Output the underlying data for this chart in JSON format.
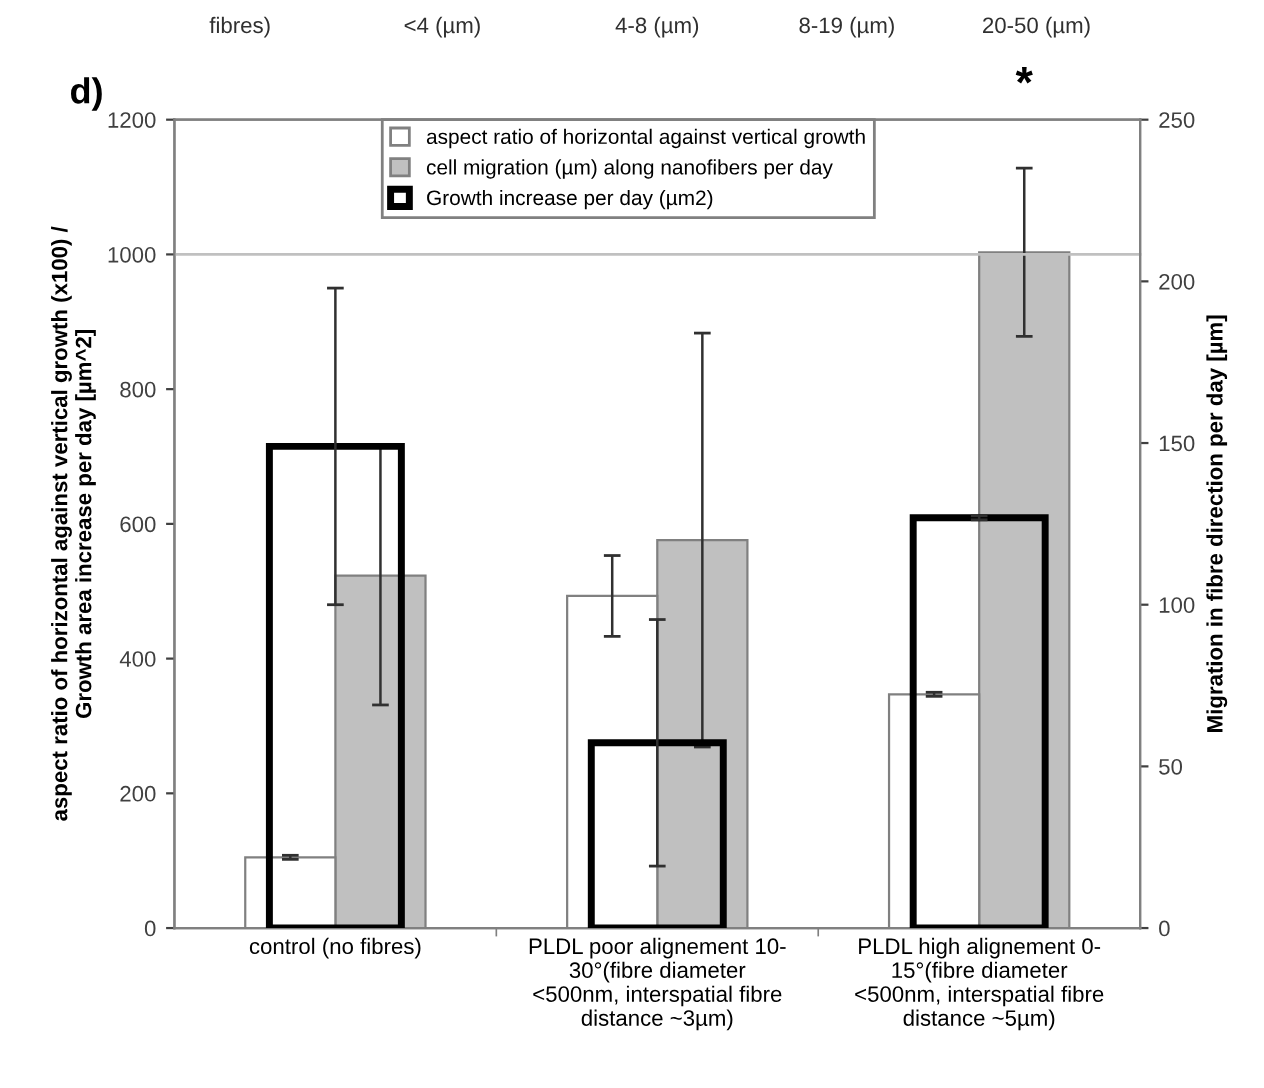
{
  "chart_data": {
    "type": "bar",
    "categories": [
      "control (no fibres)",
      "PLDL poor alignement 10-\n30°(fibre diameter\n<500nm, interspatial fibre\ndistance ~3µm)",
      "PLDL high alignement 0-\n15°(fibre diameter\n<500nm, interspatial fibre\ndistance ~5µm)"
    ],
    "ylabel": "aspect ratio of horizontal against vertical growth (x100) /\nGrowth area increase per day [µm^2]",
    "y2label": "Migration in fibre direction per day [µm]",
    "series": [
      {
        "name": "aspect ratio of horizontal against vertical growth",
        "color": "#ffffff",
        "values": [
          105,
          493,
          347
        ],
        "errors": [
          3,
          60,
          3
        ]
      },
      {
        "name": "cell migration (µm) along nanofibers per day",
        "color": "#c0c0c0",
        "values": [
          109,
          120,
          209
        ],
        "errors": [
          40,
          64,
          26
        ],
        "axis": "y2"
      },
      {
        "name": "Growth increase per day (µm2)",
        "color": "#000000",
        "values": [
          715,
          275,
          609
        ],
        "errors": [
          235,
          183,
          3
        ]
      }
    ],
    "ylim": [
      0,
      1200
    ],
    "yticks": [
      0,
      200,
      400,
      600,
      800,
      1000,
      1200
    ],
    "y2lim": [
      0,
      250
    ],
    "y2ticks": [
      0,
      50,
      100,
      150,
      200,
      250
    ],
    "ref_lines": [
      {
        "axis": "y",
        "value": 1000,
        "color": "#c0c0c0"
      }
    ],
    "legend": "top",
    "grid": false,
    "annotations": [
      "d)",
      "*",
      "fibres)",
      "<4 (µm)",
      "4-8 (µm)",
      "8-19 (µm)",
      "20-50 (µm)"
    ]
  }
}
